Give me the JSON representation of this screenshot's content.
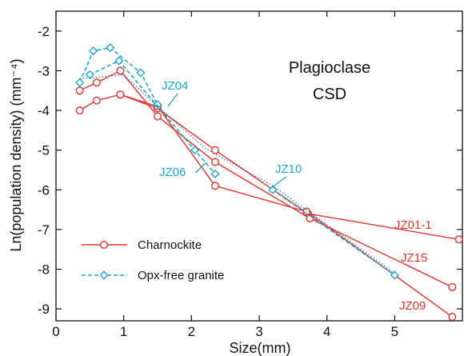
{
  "chart_data": {
    "type": "line",
    "title": "Plagioclase",
    "subtitle": "CSD",
    "xlabel": "Size(mm)",
    "ylabel": "Ln(population density) (mm⁻⁴)",
    "xlim": [
      0,
      6
    ],
    "ylim": [
      -9.3,
      -1.5
    ],
    "xticks": [
      0,
      1,
      2,
      3,
      4,
      5
    ],
    "yticks": [
      -2,
      -3,
      -4,
      -5,
      -6,
      -7,
      -8,
      -9
    ],
    "grid": false,
    "legend_position": "bottom-left",
    "colors": {
      "charnockite": "#e0332b",
      "opx_free_granite": "#1aa6cf"
    },
    "legend": [
      {
        "label": "Charnockite",
        "style": "circle-solid"
      },
      {
        "label": "Opx-free granite",
        "style": "diamond-dashed"
      }
    ],
    "series": [
      {
        "name": "JZ01-1",
        "group": "Charnockite",
        "x": [
          0.35,
          0.6,
          0.95,
          1.5,
          2.35,
          3.72,
          5.95
        ],
        "y": [
          -4.0,
          -3.75,
          -3.6,
          -3.95,
          -5.0,
          -6.6,
          -7.25
        ]
      },
      {
        "name": "JZ15",
        "group": "Charnockite",
        "x": [
          0.35,
          0.6,
          0.95,
          1.5,
          2.35,
          3.75,
          5.85
        ],
        "y": [
          -3.5,
          -3.3,
          -3.0,
          -4.15,
          -5.3,
          -6.72,
          -8.45
        ]
      },
      {
        "name": "JZ09",
        "group": "Charnockite",
        "x": [
          0.95,
          1.5,
          2.35,
          3.7,
          5.85
        ],
        "y": [
          -3.6,
          -3.9,
          -5.9,
          -6.55,
          -9.2
        ]
      },
      {
        "name": "JZ04",
        "group": "Opx-free granite",
        "x": [
          0.35,
          0.55,
          0.8,
          1.25,
          1.5
        ],
        "y": [
          -3.3,
          -2.5,
          -2.42,
          -3.05,
          -3.85
        ]
      },
      {
        "name": "JZ06",
        "group": "Opx-free granite",
        "x": [
          0.5,
          0.93,
          2.05,
          2.35
        ],
        "y": [
          -3.1,
          -2.75,
          -5.0,
          -5.6
        ]
      },
      {
        "name": "JZ10",
        "group": "Opx-free granite",
        "x": [
          3.2,
          5.0
        ],
        "y": [
          -6.0,
          -8.15
        ]
      }
    ],
    "annotations": [
      "JZ04",
      "JZ06",
      "JZ10",
      "JZ01-1",
      "JZ15",
      "JZ09"
    ]
  }
}
